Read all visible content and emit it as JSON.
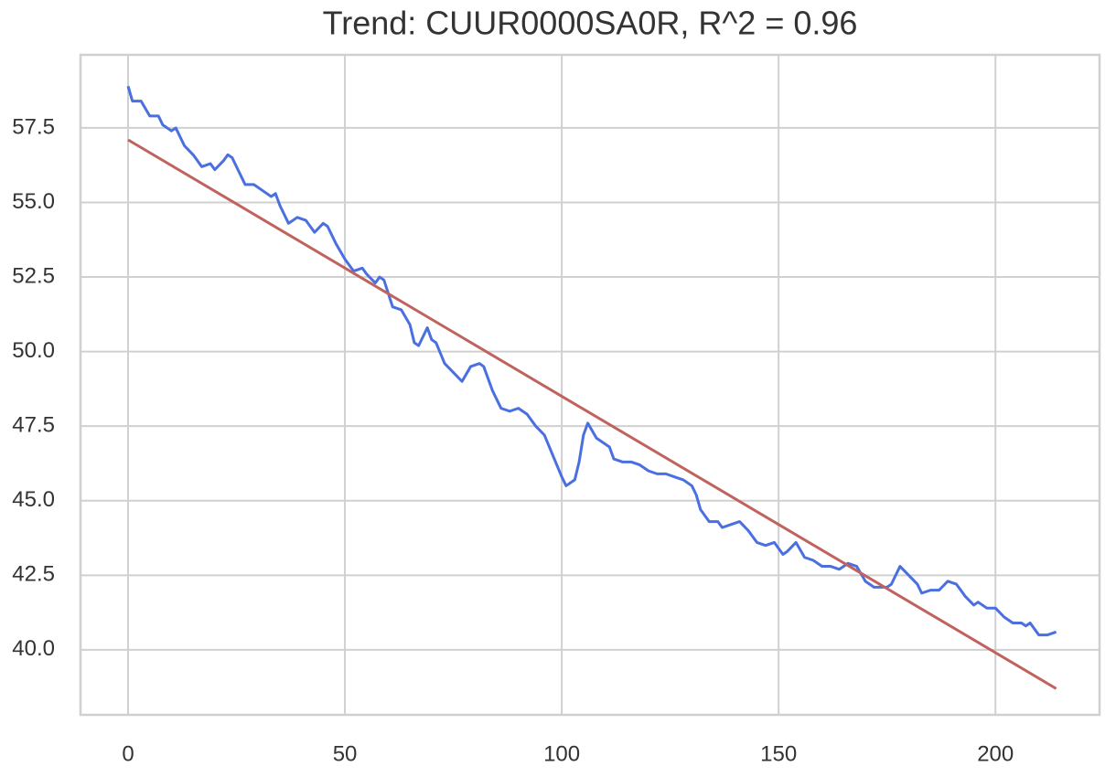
{
  "chart_data": {
    "type": "line",
    "title": "Trend: CUUR0000SA0R, R^2 = 0.96",
    "xlim": [
      -10.97,
      224.0
    ],
    "ylim": [
      37.82,
      59.95
    ],
    "xticks": [
      0,
      50,
      100,
      150,
      200
    ],
    "yticks": [
      {
        "value": 40,
        "label": "40.0"
      },
      42.5,
      {
        "value": 45,
        "label": "45.0"
      },
      47.5,
      {
        "value": 50,
        "label": "50.0"
      },
      52.5,
      {
        "value": 55,
        "label": "55.0"
      },
      57.5
    ],
    "grid": true,
    "series": [
      {
        "color": "#4a6fe0",
        "x": [
          0,
          1,
          3,
          5,
          7,
          8,
          10,
          11,
          13,
          15,
          17,
          19,
          20,
          22,
          23,
          24,
          25,
          27,
          29,
          31,
          33,
          34,
          35,
          37,
          39,
          41,
          43,
          45,
          46,
          48,
          50,
          52,
          54,
          55,
          57,
          58,
          59,
          61,
          63,
          65,
          66,
          67,
          69,
          70,
          71,
          73,
          75,
          77,
          79,
          81,
          82,
          84,
          86,
          88,
          90,
          92,
          94,
          96,
          98,
          100,
          101,
          103,
          104,
          105,
          106,
          108,
          110,
          111,
          112,
          114,
          116,
          118,
          120,
          122,
          124,
          126,
          128,
          130,
          131,
          132,
          134,
          136,
          137,
          139,
          141,
          143,
          145,
          147,
          149,
          151,
          152,
          154,
          156,
          158,
          160,
          162,
          164,
          166,
          168,
          170,
          172,
          175,
          176,
          178,
          180,
          182,
          183,
          185,
          187,
          189,
          191,
          193,
          195,
          196,
          198,
          200,
          202,
          204,
          206,
          207,
          208,
          210,
          212,
          214
        ],
        "values": [
          58.9,
          58.4,
          58.4,
          57.9,
          57.9,
          57.6,
          57.4,
          57.5,
          56.9,
          56.6,
          56.2,
          56.3,
          56.1,
          56.4,
          56.6,
          56.5,
          56.2,
          55.6,
          55.6,
          55.4,
          55.2,
          55.3,
          54.9,
          54.3,
          54.5,
          54.4,
          54.0,
          54.3,
          54.2,
          53.6,
          53.1,
          52.7,
          52.8,
          52.6,
          52.3,
          52.5,
          52.4,
          51.5,
          51.4,
          50.9,
          50.3,
          50.2,
          50.8,
          50.4,
          50.3,
          49.6,
          49.3,
          49.0,
          49.5,
          49.6,
          49.5,
          48.7,
          48.1,
          48.0,
          48.1,
          47.9,
          47.5,
          47.2,
          46.5,
          45.8,
          45.5,
          45.7,
          46.3,
          47.2,
          47.6,
          47.1,
          46.9,
          46.8,
          46.4,
          46.3,
          46.3,
          46.2,
          46.0,
          45.9,
          45.9,
          45.8,
          45.7,
          45.5,
          45.2,
          44.7,
          44.3,
          44.3,
          44.1,
          44.2,
          44.3,
          44.0,
          43.6,
          43.5,
          43.6,
          43.2,
          43.3,
          43.6,
          43.1,
          43.0,
          42.8,
          42.8,
          42.7,
          42.9,
          42.8,
          42.3,
          42.1,
          42.1,
          42.2,
          42.8,
          42.5,
          42.2,
          41.9,
          42.0,
          42.0,
          42.3,
          42.2,
          41.8,
          41.5,
          41.6,
          41.4,
          41.4,
          41.1,
          40.9,
          40.9,
          40.8,
          40.9,
          40.5,
          40.5,
          40.6
        ]
      },
      {
        "color": "#c0625e",
        "x": [
          0,
          214
        ],
        "values": [
          57.1,
          38.7
        ]
      }
    ]
  }
}
